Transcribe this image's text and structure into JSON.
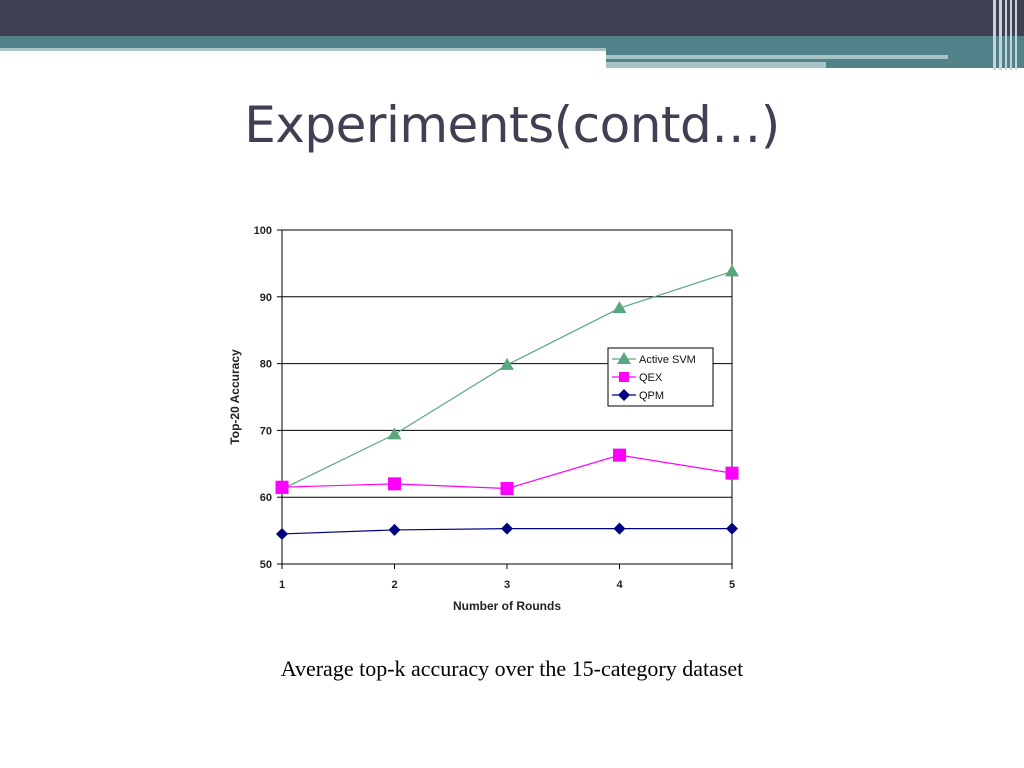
{
  "slide": {
    "title": "Experiments(contd…)",
    "caption": "Average top-k accuracy over the 15-category dataset"
  },
  "colors": {
    "top_bar": "#3f4053",
    "teal": "#51828a",
    "light_teal": "#a7c3c6",
    "title_text": "#3f4053"
  },
  "chart_data": {
    "type": "line",
    "title": "",
    "xlabel": "Number of Rounds",
    "ylabel": "Top-20 Accuracy",
    "x": [
      1,
      2,
      3,
      4,
      5
    ],
    "xlim": [
      1,
      5
    ],
    "ylim": [
      50,
      100
    ],
    "yticks": [
      50,
      60,
      70,
      80,
      90,
      100
    ],
    "xticks": [
      1,
      2,
      3,
      4,
      5
    ],
    "grid": "horizontal",
    "legend_position": "right",
    "series": [
      {
        "name": "Active SVM",
        "color": "#5aa77e",
        "marker": "triangle",
        "values": [
          61.2,
          69.4,
          79.8,
          88.3,
          93.8
        ]
      },
      {
        "name": "QEX",
        "color": "#ff00ff",
        "marker": "square",
        "values": [
          61.5,
          62.0,
          61.3,
          66.3,
          63.6
        ]
      },
      {
        "name": "QPM",
        "color": "#000080",
        "marker": "diamond",
        "values": [
          54.5,
          55.1,
          55.3,
          55.3,
          55.3
        ]
      }
    ]
  }
}
